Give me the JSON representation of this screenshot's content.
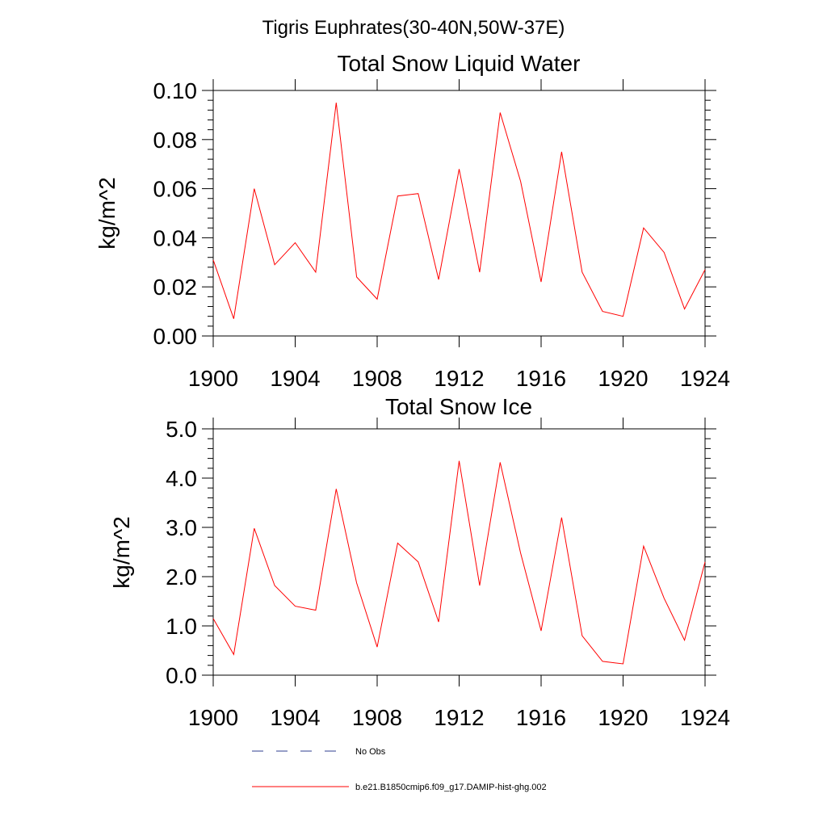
{
  "figure_title": "Tigris Euphrates(30-40N,50W-37E)",
  "colors": {
    "model_line": "#ff0000",
    "obs_line": "#2f3f8f",
    "axis": "#000000"
  },
  "legend": {
    "obs_label": "No Obs",
    "model_label": "b.e21.B1850cmip6.f09_g17.DAMIP-hist-ghg.002"
  },
  "chart_data": [
    {
      "type": "line",
      "title": "Total Snow Liquid Water",
      "xlabel": "",
      "ylabel": "kg/m^2",
      "xlim": [
        1900,
        1924
      ],
      "ylim": [
        0,
        0.1
      ],
      "xticks": [
        "1900",
        "1904",
        "1908",
        "1912",
        "1916",
        "1920",
        "1924"
      ],
      "yticks": [
        "0.00",
        "0.02",
        "0.04",
        "0.06",
        "0.08",
        "0.10"
      ],
      "x": [
        1900,
        1901,
        1902,
        1903,
        1904,
        1905,
        1906,
        1907,
        1908,
        1909,
        1910,
        1911,
        1912,
        1913,
        1914,
        1915,
        1916,
        1917,
        1918,
        1919,
        1920,
        1921,
        1922,
        1923,
        1924
      ],
      "series": [
        {
          "name": "b.e21.B1850cmip6.f09_g17.DAMIP-hist-ghg.002",
          "values": [
            0.031,
            0.007,
            0.06,
            0.029,
            0.038,
            0.026,
            0.095,
            0.024,
            0.015,
            0.057,
            0.058,
            0.023,
            0.068,
            0.026,
            0.091,
            0.063,
            0.022,
            0.075,
            0.026,
            0.01,
            0.008,
            0.044,
            0.034,
            0.011,
            0.027
          ]
        }
      ]
    },
    {
      "type": "line",
      "title": "Total Snow Ice",
      "xlabel": "",
      "ylabel": "kg/m^2",
      "xlim": [
        1900,
        1924
      ],
      "ylim": [
        0,
        5
      ],
      "xticks": [
        "1900",
        "1904",
        "1908",
        "1912",
        "1916",
        "1920",
        "1924"
      ],
      "yticks": [
        "0.0",
        "1.0",
        "2.0",
        "3.0",
        "4.0",
        "5.0"
      ],
      "x": [
        1900,
        1901,
        1902,
        1903,
        1904,
        1905,
        1906,
        1907,
        1908,
        1909,
        1910,
        1911,
        1912,
        1913,
        1914,
        1915,
        1916,
        1917,
        1918,
        1919,
        1920,
        1921,
        1922,
        1923,
        1924
      ],
      "series": [
        {
          "name": "b.e21.B1850cmip6.f09_g17.DAMIP-hist-ghg.002",
          "values": [
            1.15,
            0.42,
            2.98,
            1.82,
            1.4,
            1.32,
            3.78,
            1.87,
            0.57,
            2.68,
            2.3,
            1.08,
            4.35,
            1.82,
            4.32,
            2.48,
            0.9,
            3.2,
            0.8,
            0.28,
            0.23,
            2.62,
            1.56,
            0.71,
            2.3
          ]
        }
      ]
    }
  ]
}
